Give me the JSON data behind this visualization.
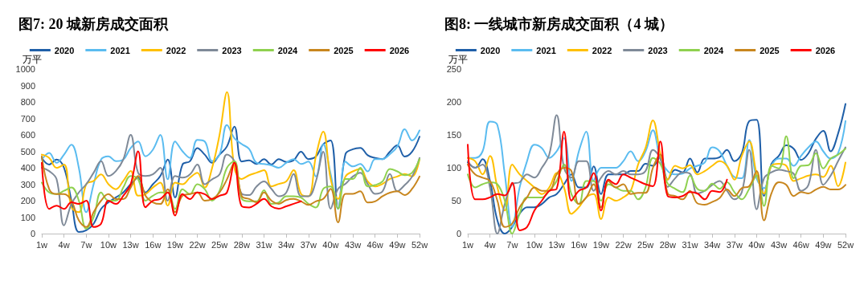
{
  "chart_data": [
    {
      "type": "line",
      "title": "图7: 20 城新房成交面积",
      "ylabel": "万平",
      "categories": [
        "1w",
        null,
        null,
        "4w",
        null,
        null,
        "7w",
        null,
        null,
        "10w",
        null,
        null,
        "13w",
        null,
        null,
        "16w",
        null,
        null,
        "19w",
        null,
        null,
        "22w",
        null,
        null,
        "25w",
        null,
        null,
        "28w",
        null,
        null,
        "31w",
        null,
        null,
        "34w",
        null,
        null,
        "37w",
        null,
        null,
        "40w",
        null,
        null,
        "43w",
        null,
        null,
        "46w",
        null,
        null,
        "49w",
        null,
        null,
        "52w"
      ],
      "ylim": [
        0,
        1000
      ],
      "yticks": [
        0,
        100,
        200,
        300,
        400,
        500,
        600,
        700,
        800,
        900,
        1000
      ],
      "grid": false,
      "legend": "top",
      "marker": "none",
      "line_style": "solid",
      "series": [
        {
          "name": "2020",
          "color": "#1f5fa8",
          "values": [
            460,
            420,
            450,
            400,
            200,
            10,
            20,
            60,
            150,
            190,
            220,
            250,
            300,
            340,
            250,
            300,
            350,
            450,
            220,
            420,
            440,
            520,
            480,
            430,
            480,
            530,
            650,
            438,
            445,
            423,
            453,
            420,
            453,
            435,
            446,
            498,
            453,
            468,
            543,
            566,
            151,
            483,
            513,
            521,
            476,
            460,
            453,
            498,
            536,
            468,
            498,
            589
          ]
        },
        {
          "name": "2021",
          "color": "#5bbcf0",
          "values": [
            450,
            490,
            430,
            480,
            540,
            400,
            130,
            300,
            450,
            470,
            440,
            450,
            520,
            560,
            470,
            510,
            600,
            330,
            560,
            500,
            460,
            570,
            560,
            440,
            480,
            660,
            580,
            544,
            514,
            430,
            423,
            415,
            400,
            430,
            453,
            423,
            438,
            347,
            543,
            362,
            151,
            438,
            408,
            423,
            378,
            453,
            453,
            483,
            529,
            634,
            566,
            627
          ]
        },
        {
          "name": "2022",
          "color": "#ffc000",
          "values": [
            480,
            460,
            400,
            420,
            160,
            130,
            300,
            320,
            360,
            300,
            270,
            320,
            380,
            230,
            240,
            280,
            310,
            170,
            310,
            300,
            340,
            370,
            280,
            400,
            600,
            860,
            400,
            332,
            355,
            370,
            385,
            287,
            302,
            317,
            385,
            242,
            227,
            468,
            619,
            332,
            211,
            347,
            378,
            393,
            317,
            287,
            302,
            332,
            347,
            362,
            347,
            453
          ]
        },
        {
          "name": "2023",
          "color": "#7f8a98",
          "values": [
            400,
            380,
            330,
            50,
            180,
            250,
            300,
            370,
            440,
            350,
            380,
            450,
            600,
            370,
            350,
            360,
            400,
            200,
            350,
            340,
            360,
            420,
            300,
            330,
            360,
            480,
            440,
            242,
            234,
            287,
            317,
            272,
            227,
            249,
            362,
            227,
            227,
            317,
            498,
            151,
            272,
            302,
            347,
            370,
            302,
            242,
            257,
            362,
            257,
            295,
            347,
            460
          ]
        },
        {
          "name": "2024",
          "color": "#8fd14f",
          "values": [
            310,
            250,
            240,
            260,
            280,
            200,
            30,
            100,
            250,
            200,
            200,
            280,
            350,
            330,
            200,
            230,
            250,
            250,
            150,
            270,
            240,
            300,
            270,
            200,
            260,
            400,
            440,
            211,
            196,
            196,
            264,
            181,
            189,
            227,
            227,
            219,
            181,
            159,
            272,
            287,
            151,
            332,
            332,
            400,
            287,
            295,
            317,
            393,
            378,
            355,
            370,
            453
          ]
        },
        {
          "name": "2025",
          "color": "#c8861e",
          "values": [
            470,
            270,
            240,
            240,
            200,
            80,
            40,
            130,
            200,
            240,
            210,
            210,
            280,
            350,
            230,
            190,
            180,
            270,
            130,
            230,
            240,
            250,
            200,
            210,
            250,
            330,
            430,
            227,
            210,
            190,
            250,
            200,
            181,
            204,
            211,
            196,
            174,
            196,
            211,
            272,
            68,
            242,
            242,
            257,
            189,
            196,
            227,
            249,
            257,
            234,
            272,
            347
          ]
        },
        {
          "name": "2026",
          "color": "#ff0000",
          "values": [
            430,
            150,
            170,
            150,
            190,
            180,
            200,
            40,
            60,
            200,
            180,
            230,
            300,
            500,
            160,
            200,
            210,
            250,
            110,
            240,
            210,
            250,
            240,
            210,
            230,
            250,
            430,
            166,
            159,
            181,
            211,
            166,
            151,
            166,
            181,
            196,
            null,
            null,
            null,
            null,
            null,
            null,
            null,
            null,
            null,
            null,
            null,
            null,
            null,
            null,
            null,
            null
          ]
        }
      ]
    },
    {
      "type": "line",
      "title": "图8: 一线城市新房成交面积（4 城）",
      "ylabel": "万平",
      "categories": [
        "1w",
        null,
        null,
        "4w",
        null,
        null,
        "7w",
        null,
        null,
        "10w",
        null,
        null,
        "13w",
        null,
        null,
        "16w",
        null,
        null,
        "19w",
        null,
        null,
        "22w",
        null,
        null,
        "25w",
        null,
        null,
        "28w",
        null,
        null,
        "31w",
        null,
        null,
        "34w",
        null,
        null,
        "37w",
        null,
        null,
        "40w",
        null,
        null,
        "43w",
        null,
        null,
        "46w",
        null,
        null,
        "49w",
        null,
        null,
        "52w"
      ],
      "ylim": [
        0,
        250
      ],
      "yticks": [
        0,
        50,
        100,
        150,
        200,
        250
      ],
      "grid": false,
      "legend": "top",
      "marker": "none",
      "line_style": "solid",
      "series": [
        {
          "name": "2020",
          "color": "#1f5fa8",
          "values": [
            108,
            100,
            113,
            80,
            20,
            0,
            10,
            30,
            40,
            40,
            45,
            55,
            60,
            75,
            90,
            70,
            70,
            102,
            60,
            90,
            90,
            90,
            95,
            95,
            106,
            103,
            117,
            82,
            97,
            93,
            114,
            93,
            114,
            114,
            116,
            127,
            110,
            122,
            171,
            173,
            57,
            106,
            118,
            134,
            129,
            112,
            122,
            144,
            156,
            125,
            152,
            197
          ]
        },
        {
          "name": "2021",
          "color": "#5bbcf0",
          "values": [
            115,
            115,
            125,
            170,
            165,
            90,
            10,
            70,
            110,
            135,
            130,
            115,
            125,
            145,
            80,
            125,
            155,
            80,
            100,
            100,
            100,
            110,
            125,
            110,
            125,
            157,
            114,
            95,
            90,
            91,
            99,
            103,
            108,
            131,
            125,
            103,
            86,
            84,
            142,
            84,
            69,
            103,
            114,
            114,
            103,
            118,
            131,
            140,
            125,
            114,
            122,
            171
          ]
        },
        {
          "name": "2022",
          "color": "#ffc000",
          "values": [
            115,
            110,
            90,
            118,
            70,
            35,
            105,
            90,
            80,
            70,
            60,
            70,
            92,
            70,
            30,
            40,
            55,
            60,
            22,
            55,
            50,
            55,
            65,
            105,
            130,
            172,
            122,
            82,
            103,
            99,
            104,
            90,
            95,
            103,
            110,
            103,
            82,
            118,
            140,
            91,
            61,
            103,
            106,
            103,
            80,
            84,
            88,
            90,
            86,
            103,
            72,
            108
          ]
        },
        {
          "name": "2023",
          "color": "#7f8a98",
          "values": [
            110,
            100,
            105,
            70,
            0,
            45,
            75,
            78,
            90,
            85,
            100,
            120,
            180,
            100,
            85,
            110,
            110,
            65,
            85,
            95,
            90,
            95,
            90,
            90,
            95,
            127,
            114,
            71,
            84,
            93,
            91,
            61,
            65,
            74,
            80,
            65,
            52,
            63,
            127,
            37,
            84,
            93,
            97,
            95,
            91,
            65,
            74,
            127,
            74,
            88,
            110,
            131
          ]
        },
        {
          "name": "2024",
          "color": "#8fd14f",
          "values": [
            90,
            70,
            75,
            78,
            75,
            50,
            0,
            30,
            55,
            55,
            55,
            65,
            80,
            105,
            60,
            45,
            80,
            80,
            50,
            75,
            70,
            65,
            65,
            52,
            70,
            115,
            106,
            76,
            68,
            63,
            88,
            68,
            65,
            76,
            68,
            78,
            63,
            52,
            68,
            88,
            42,
            103,
            99,
            148,
            84,
            103,
            104,
            122,
            99,
            114,
            120,
            129
          ]
        },
        {
          "name": "2025",
          "color": "#c8861e",
          "values": [
            105,
            90,
            85,
            80,
            50,
            10,
            15,
            40,
            55,
            70,
            65,
            65,
            90,
            100,
            95,
            45,
            55,
            75,
            40,
            80,
            70,
            75,
            60,
            62,
            62,
            100,
            120,
            61,
            57,
            52,
            65,
            46,
            44,
            48,
            54,
            67,
            57,
            69,
            72,
            95,
            20,
            61,
            78,
            74,
            57,
            63,
            61,
            67,
            71,
            67,
            67,
            74
          ]
        },
        {
          "name": "2026",
          "color": "#ff0000",
          "values": [
            135,
            52,
            52,
            55,
            60,
            58,
            77,
            5,
            10,
            35,
            50,
            65,
            68,
            155,
            50,
            65,
            70,
            92,
            35,
            82,
            75,
            90,
            85,
            80,
            75,
            72,
            140,
            57,
            55,
            57,
            63,
            61,
            52,
            65,
            63,
            82,
            null,
            null,
            null,
            null,
            null,
            null,
            null,
            null,
            null,
            null,
            null,
            null,
            null,
            null,
            null,
            null
          ]
        }
      ]
    }
  ]
}
